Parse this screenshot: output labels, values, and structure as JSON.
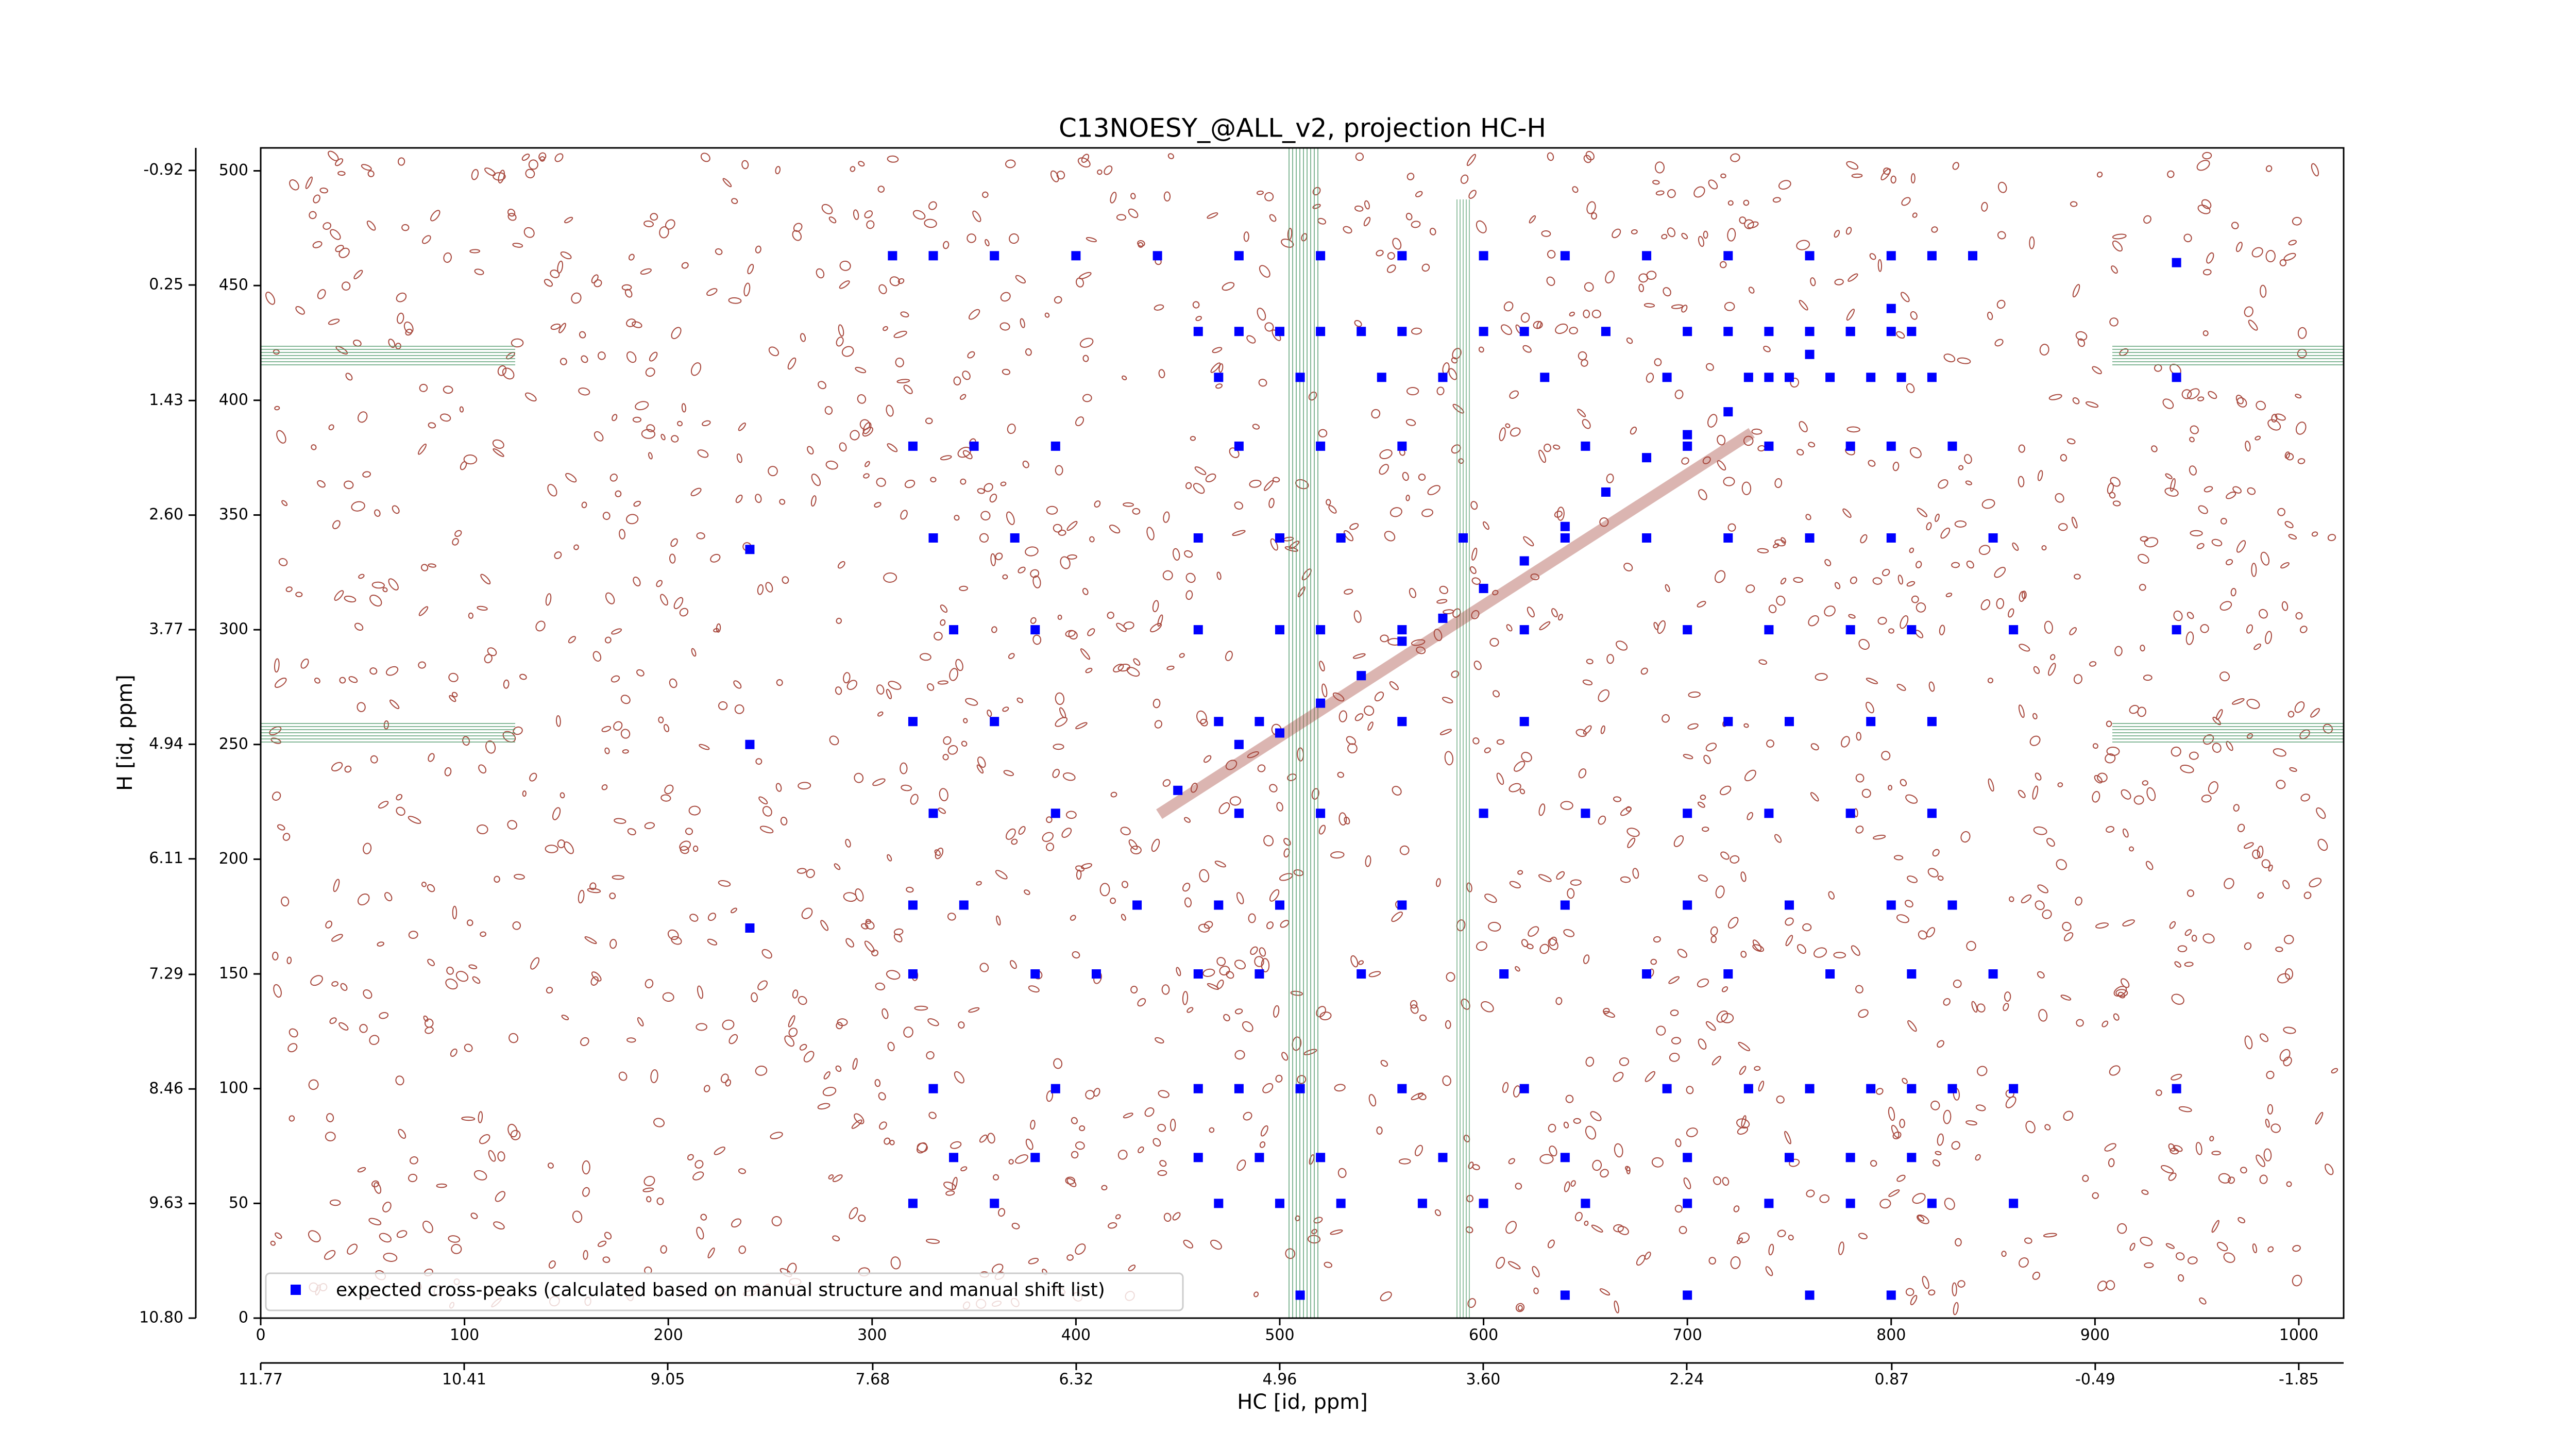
{
  "chart_data": {
    "type": "scatter",
    "title": "C13NOESY_@ALL_v2, projection HC-H",
    "x_label": "HC [id, ppm]",
    "y_label": "H [id, ppm]",
    "xlim": [
      0,
      1022
    ],
    "xticks": [
      0,
      100,
      200,
      300,
      400,
      500,
      600,
      700,
      800,
      900,
      1000
    ],
    "x2lim": [
      11.77,
      -2.15
    ],
    "x2ticks": [
      11.77,
      10.41,
      9.05,
      7.68,
      6.32,
      4.96,
      {
        "value": 3.6,
        "label": "3.60"
      },
      2.24,
      0.87,
      -0.49,
      -1.85
    ],
    "ylim": [
      0,
      510
    ],
    "yticks": [
      0,
      50,
      100,
      150,
      200,
      250,
      300,
      350,
      400,
      450,
      500
    ],
    "y2lim": [
      10.8,
      -1.15
    ],
    "y2ticks": [
      {
        "value": 10.8,
        "label": "10.80"
      },
      9.63,
      8.46,
      7.29,
      6.11,
      4.94,
      3.77,
      {
        "value": 2.6,
        "label": "2.60"
      },
      1.43,
      0.25,
      -0.92
    ],
    "legend": "lower left",
    "series": [
      {
        "name": "expected cross-peaks (calculated based on manual structure and manual shift list)",
        "color": "#0000ff",
        "x": [
          310,
          330,
          360,
          400,
          440,
          480,
          520,
          560,
          600,
          640,
          680,
          720,
          760,
          800,
          820,
          840,
          460,
          480,
          500,
          520,
          540,
          560,
          600,
          620,
          660,
          700,
          720,
          740,
          760,
          780,
          800,
          810,
          470,
          510,
          550,
          580,
          630,
          690,
          730,
          750,
          770,
          790,
          805,
          820,
          320,
          350,
          390,
          480,
          520,
          560,
          650,
          700,
          740,
          780,
          800,
          830,
          330,
          370,
          460,
          500,
          530,
          590,
          640,
          680,
          720,
          760,
          800,
          850,
          340,
          380,
          460,
          500,
          520,
          560,
          620,
          700,
          740,
          780,
          810,
          860,
          320,
          360,
          470,
          490,
          560,
          620,
          720,
          750,
          790,
          820,
          330,
          390,
          480,
          520,
          600,
          650,
          700,
          740,
          780,
          820,
          320,
          345,
          430,
          470,
          500,
          560,
          640,
          700,
          750,
          800,
          830,
          320,
          380,
          410,
          460,
          490,
          540,
          610,
          680,
          720,
          770,
          810,
          850,
          330,
          390,
          460,
          480,
          510,
          560,
          620,
          690,
          730,
          760,
          790,
          810,
          830,
          860,
          340,
          380,
          460,
          490,
          520,
          580,
          640,
          700,
          750,
          780,
          810,
          320,
          360,
          470,
          500,
          530,
          570,
          600,
          650,
          700,
          740,
          780,
          820,
          860,
          510,
          640,
          700,
          760,
          800,
          450,
          480,
          500,
          520,
          540,
          560,
          580,
          600,
          620,
          640,
          660,
          680,
          700,
          720,
          740,
          760,
          780,
          800,
          240,
          240,
          240,
          940,
          940,
          940,
          940
        ],
        "values": [
          463,
          463,
          463,
          463,
          463,
          463,
          463,
          463,
          463,
          463,
          463,
          463,
          463,
          463,
          463,
          463,
          430,
          430,
          430,
          430,
          430,
          430,
          430,
          430,
          430,
          430,
          430,
          430,
          430,
          430,
          430,
          430,
          410,
          410,
          410,
          410,
          410,
          410,
          410,
          410,
          410,
          410,
          410,
          410,
          380,
          380,
          380,
          380,
          380,
          380,
          380,
          380,
          380,
          380,
          380,
          380,
          340,
          340,
          340,
          340,
          340,
          340,
          340,
          340,
          340,
          340,
          340,
          340,
          300,
          300,
          300,
          300,
          300,
          300,
          300,
          300,
          300,
          300,
          300,
          300,
          260,
          260,
          260,
          260,
          260,
          260,
          260,
          260,
          260,
          260,
          220,
          220,
          220,
          220,
          220,
          220,
          220,
          220,
          220,
          220,
          180,
          180,
          180,
          180,
          180,
          180,
          180,
          180,
          180,
          180,
          180,
          150,
          150,
          150,
          150,
          150,
          150,
          150,
          150,
          150,
          150,
          150,
          150,
          100,
          100,
          100,
          100,
          100,
          100,
          100,
          100,
          100,
          100,
          100,
          100,
          100,
          100,
          70,
          70,
          70,
          70,
          70,
          70,
          70,
          70,
          70,
          70,
          70,
          50,
          50,
          50,
          50,
          50,
          50,
          50,
          50,
          50,
          50,
          50,
          50,
          50,
          10,
          10,
          10,
          10,
          10,
          230,
          250,
          255,
          268,
          280,
          295,
          305,
          318,
          330,
          345,
          360,
          375,
          385,
          395,
          410,
          420,
          430,
          440,
          250,
          335,
          170,
          300,
          410,
          460,
          100
        ]
      }
    ]
  }
}
